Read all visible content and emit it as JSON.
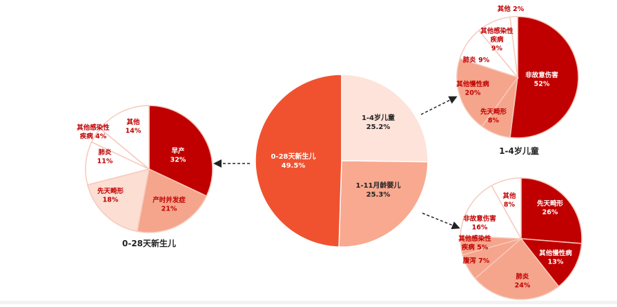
{
  "colors": {
    "dark": "#c00000",
    "salmon": "#f5a58c",
    "light": "#fcded3",
    "white": "#ffffff",
    "center_main": "#f0522f",
    "center_light": "#fde3da",
    "center_mid": "#f8a98f",
    "label_dark": "#c00000"
  },
  "chart_data": [
    {
      "id": "center",
      "type": "pie",
      "slices": [
        {
          "label": "1-4岁儿童",
          "value": 25.2,
          "value_label": "25.2%",
          "color": "#fde3da"
        },
        {
          "label": "1-11月龄婴儿",
          "value": 25.3,
          "value_label": "25.3%",
          "color": "#f8a98f"
        },
        {
          "label": "0-28天新生儿",
          "value": 49.5,
          "value_label": "49.5%",
          "color": "#f0522f"
        }
      ]
    },
    {
      "id": "newborn",
      "type": "pie",
      "title": "0-28天新生儿",
      "slices": [
        {
          "label": "早产",
          "value": 32,
          "value_label": "32%",
          "color": "#c00000"
        },
        {
          "label": "产时并发症",
          "value": 21,
          "value_label": "21%",
          "color": "#f5a58c"
        },
        {
          "label": "先天畸形",
          "value": 18,
          "value_label": "18%",
          "color": "#fcded3"
        },
        {
          "label": "肺炎",
          "value": 11,
          "value_label": "11%",
          "color": "#ffffff"
        },
        {
          "label": "其他感染性疾病",
          "value": 4,
          "value_label": "4%",
          "color": "#ffffff"
        },
        {
          "label": "其他",
          "value": 14,
          "value_label": "14%",
          "color": "#ffffff"
        }
      ]
    },
    {
      "id": "child",
      "type": "pie",
      "title": "1-4岁儿童",
      "slices": [
        {
          "label": "非故意伤害",
          "value": 52,
          "value_label": "52%",
          "color": "#c00000"
        },
        {
          "label": "先天畸形",
          "value": 8,
          "value_label": "8%",
          "color": "#f5a58c"
        },
        {
          "label": "其他慢性病",
          "value": 20,
          "value_label": "20%",
          "color": "#f5a58c"
        },
        {
          "label": "肺炎",
          "value": 9,
          "value_label": "9%",
          "color": "#ffffff"
        },
        {
          "label": "其他感染性疾病",
          "value": 9,
          "value_label": "9%",
          "color": "#ffffff"
        },
        {
          "label": "其他",
          "value": 2,
          "value_label": "2%",
          "color": "#ffffff"
        }
      ]
    },
    {
      "id": "infant",
      "type": "pie",
      "slices": [
        {
          "label": "先天畸形",
          "value": 26,
          "value_label": "26%",
          "color": "#c00000"
        },
        {
          "label": "其他慢性病",
          "value": 13,
          "value_label": "13%",
          "color": "#c00000"
        },
        {
          "label": "肺炎",
          "value": 24,
          "value_label": "24%",
          "color": "#f5a58c"
        },
        {
          "label": "腹泻",
          "value": 7,
          "value_label": "7%",
          "color": "#f5a58c"
        },
        {
          "label": "其他感染性疾病",
          "value": 5,
          "value_label": "5%",
          "color": "#f5a58c"
        },
        {
          "label": "非故意伤害",
          "value": 16,
          "value_label": "16%",
          "color": "#ffffff"
        },
        {
          "label": "其他",
          "value": 8,
          "value_label": "8%",
          "color": "#ffffff"
        }
      ]
    }
  ]
}
